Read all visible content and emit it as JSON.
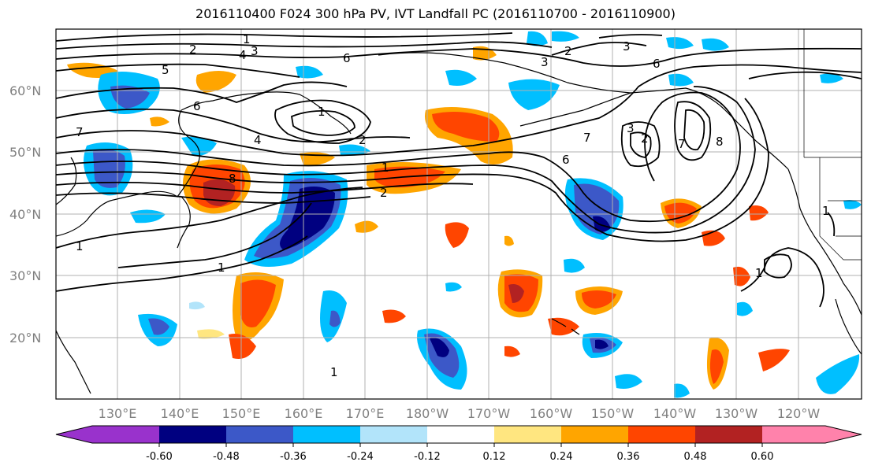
{
  "title": "2016110400 F024 300 hPa PV, IVT Landfall PC (2016110700 - 2016110900)",
  "map": {
    "lat_labels": [
      "60°N",
      "50°N",
      "40°N",
      "30°N",
      "20°N"
    ],
    "lon_labels": [
      "130°E",
      "140°E",
      "150°E",
      "160°E",
      "170°E",
      "180°W",
      "170°W",
      "160°W",
      "150°W",
      "140°W",
      "130°W",
      "120°W"
    ],
    "contour_labels": [
      "1",
      "2",
      "3",
      "4",
      "5",
      "6",
      "7",
      "8",
      "2",
      "1",
      "1",
      "1",
      "1",
      "6",
      "3",
      "2",
      "4",
      "6",
      "7",
      "1",
      "1",
      "2",
      "3",
      "6",
      "7",
      "8",
      "3",
      "2",
      "1"
    ]
  },
  "colorbar": {
    "ticks": [
      "-0.60",
      "-0.48",
      "-0.36",
      "-0.24",
      "-0.12",
      "0.12",
      "0.24",
      "0.36",
      "0.48",
      "0.60"
    ],
    "colors": [
      "#9932cc",
      "#000080",
      "#3c58c8",
      "#00bfff",
      "#b2e4fa",
      "#ffffff",
      "#ffe680",
      "#ffa500",
      "#ff4500",
      "#b22222",
      "#ff82ab"
    ]
  }
}
